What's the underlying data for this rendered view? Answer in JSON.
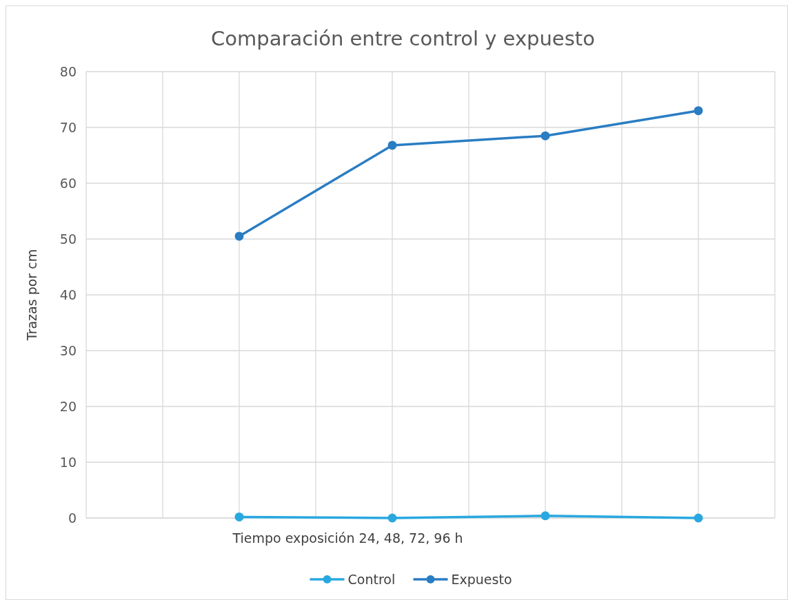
{
  "chart_data": {
    "type": "line",
    "title": "Comparación entre control y expuesto",
    "xlabel": "Tiempo exposición 24, 48, 72, 96 h",
    "ylabel": "Trazas por cm",
    "categories": [
      null,
      null,
      null,
      null
    ],
    "series": [
      {
        "name": "Control",
        "color": "#29a8e0",
        "values": [
          0.2,
          0,
          0.4,
          0
        ]
      },
      {
        "name": "Expuesto",
        "color": "#2a7dc3",
        "values": [
          50.5,
          66.8,
          68.5,
          73.0
        ]
      }
    ],
    "ylim": [
      0,
      80
    ],
    "yticks": [
      0,
      10,
      20,
      30,
      40,
      50,
      60,
      70,
      80
    ],
    "tick_labels": "y",
    "grid": true,
    "legend": "bottom",
    "marker": "circle",
    "line_style": "solid"
  }
}
